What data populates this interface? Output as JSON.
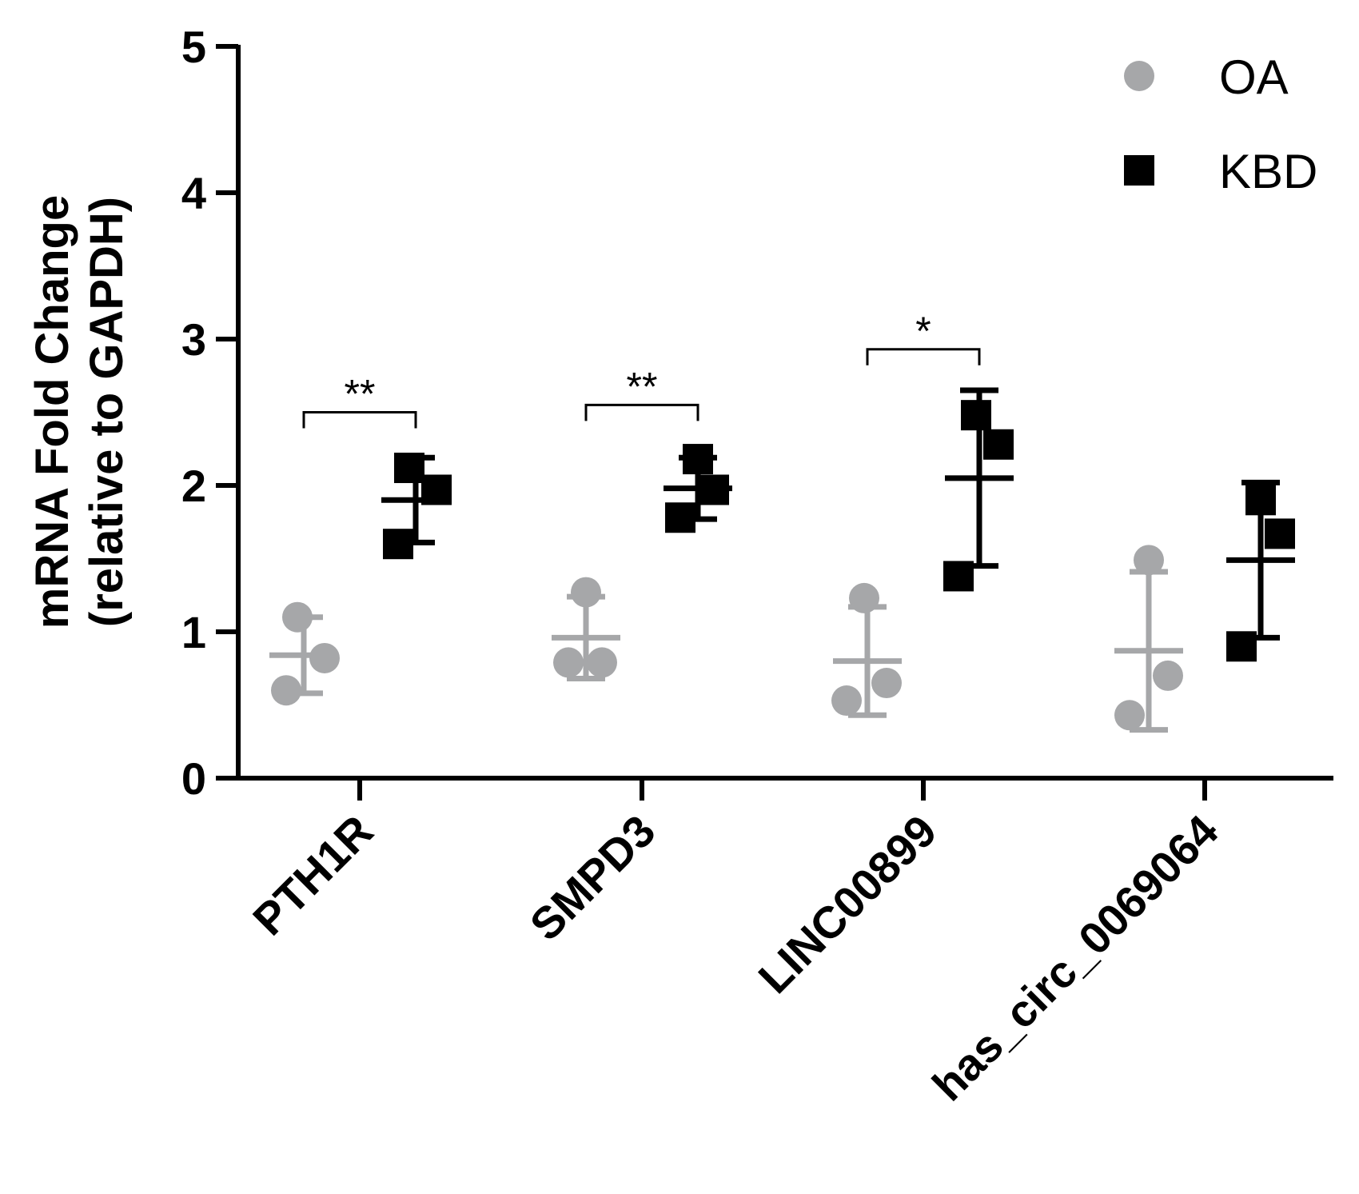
{
  "chart_data": {
    "type": "scatter",
    "title": "",
    "ylabel_line1": "mRNA Fold Change",
    "ylabel_line2": "(relative to GAPDH)",
    "xlabel": "",
    "ylim": [
      0,
      5
    ],
    "yticks": [
      "0",
      "1",
      "2",
      "3",
      "4",
      "5"
    ],
    "categories": [
      "PTH1R",
      "SMPD3",
      "LINC00899",
      "has_circ_0069064"
    ],
    "legend_position": "top-right",
    "series": [
      {
        "name": "OA",
        "marker": "circle",
        "color": "#a6a7a9",
        "points": [
          [
            1.1,
            0.82,
            0.6
          ],
          [
            1.27,
            0.79,
            0.79
          ],
          [
            1.23,
            0.65,
            0.53
          ],
          [
            1.49,
            0.7,
            0.43
          ]
        ],
        "mean": [
          0.84,
          0.96,
          0.8,
          0.87
        ],
        "sd": [
          0.26,
          0.28,
          0.37,
          0.54
        ]
      },
      {
        "name": "KBD",
        "marker": "square",
        "color": "#000000",
        "points": [
          [
            2.12,
            1.97,
            1.6
          ],
          [
            2.18,
            1.97,
            1.78
          ],
          [
            2.48,
            2.28,
            1.38
          ],
          [
            1.9,
            1.67,
            0.9
          ]
        ],
        "mean": [
          1.9,
          1.98,
          2.05,
          1.49
        ],
        "sd": [
          0.29,
          0.21,
          0.6,
          0.53
        ]
      }
    ],
    "significance": [
      {
        "category": "PTH1R",
        "label": "**",
        "y": 2.5
      },
      {
        "category": "SMPD3",
        "label": "**",
        "y": 2.55
      },
      {
        "category": "LINC00899",
        "label": "*",
        "y": 2.93
      }
    ]
  }
}
